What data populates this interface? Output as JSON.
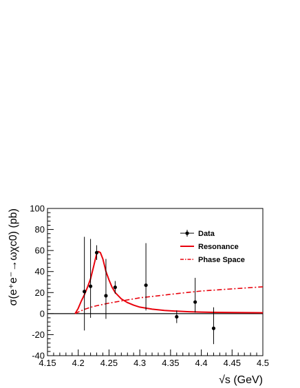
{
  "chart_data": {
    "type": "scatter",
    "xlabel": "√s (GeV)",
    "ylabel": "σ(e⁺e⁻→ωχc0) (pb)",
    "xlim": [
      4.15,
      4.5
    ],
    "ylim": [
      -40,
      100
    ],
    "x_ticks": [
      "4.15",
      "4.2",
      "4.25",
      "4.3",
      "4.35",
      "4.4",
      "4.45",
      "4.5"
    ],
    "y_ticks": [
      "-40",
      "-20",
      "0",
      "20",
      "40",
      "60",
      "80",
      "100"
    ],
    "grid": false,
    "legend_position": "top-right",
    "series": [
      {
        "name": "Data",
        "kind": "points-with-errors",
        "color": "#000000",
        "x": [
          4.21,
          4.22,
          4.23,
          4.245,
          4.26,
          4.31,
          4.36,
          4.39,
          4.42
        ],
        "y": [
          21,
          26,
          58,
          17,
          25,
          27,
          -3,
          11,
          -14
        ],
        "ylow": [
          -16,
          -4,
          51,
          -5,
          19,
          3,
          -9,
          1,
          -29
        ],
        "yhigh": [
          73,
          71,
          65,
          52,
          31,
          67,
          3,
          34,
          6
        ]
      },
      {
        "name": "Resonance",
        "kind": "line",
        "color": "#e8000b",
        "style": "solid",
        "x": [
          4.195,
          4.2,
          4.205,
          4.21,
          4.215,
          4.22,
          4.225,
          4.23,
          4.233,
          4.236,
          4.24,
          4.245,
          4.25,
          4.255,
          4.26,
          4.27,
          4.28,
          4.29,
          4.3,
          4.32,
          4.34,
          4.36,
          4.38,
          4.4,
          4.42,
          4.45,
          4.5
        ],
        "y": [
          0,
          5,
          12,
          18,
          25,
          33,
          45,
          57,
          59,
          58,
          52,
          40,
          32,
          25,
          20,
          14,
          10.5,
          8,
          6.2,
          4.2,
          3,
          2.3,
          1.8,
          1.5,
          1.2,
          1,
          0.8
        ]
      },
      {
        "name": "Phase Space",
        "kind": "line",
        "color": "#e8000b",
        "style": "dashdot",
        "x": [
          4.195,
          4.2,
          4.21,
          4.22,
          4.23,
          4.25,
          4.27,
          4.3,
          4.33,
          4.36,
          4.4,
          4.45,
          4.5
        ],
        "y": [
          0,
          1.5,
          4,
          6,
          7.5,
          10,
          12,
          15,
          17,
          19,
          21.5,
          23.5,
          25.5
        ]
      }
    ]
  }
}
